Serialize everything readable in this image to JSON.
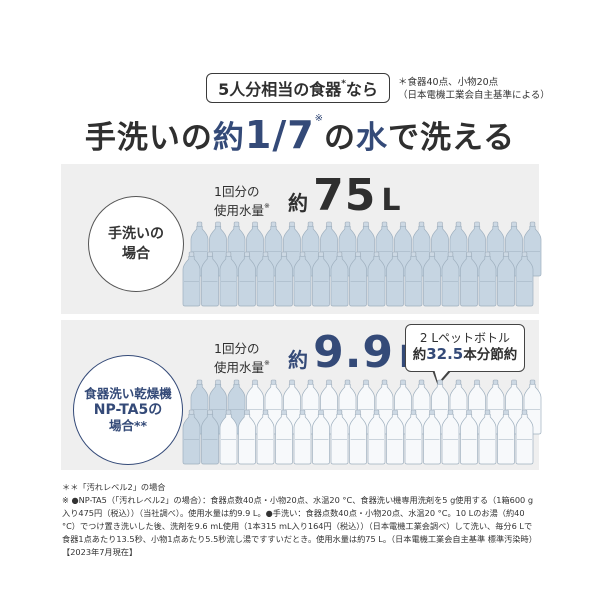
{
  "header": {
    "badge_text": "5人分相当の食器",
    "badge_mark": "*",
    "badge_suffix": "なら",
    "note_line1": "＊食器40点、小物20点",
    "note_line2": "（日本電機工業会自主基準による）"
  },
  "title": {
    "part1": "手洗いの",
    "part2": "約",
    "part3": "1/7",
    "mark": "※",
    "part4": "の",
    "part5": "水",
    "part6": "で洗える"
  },
  "handwash": {
    "circle_line1": "手洗いの",
    "circle_line2": "場合",
    "label_line1": "1回分の",
    "label_line2": "使用水量",
    "label_mark": "※",
    "approx": "約",
    "value": "75",
    "unit": "L",
    "bottles_total": 38
  },
  "dishwasher": {
    "circle_line1": "食器洗い乾燥機",
    "circle_line2": "NP-TA5の",
    "circle_line3": "場合**",
    "label_line1": "1回分の",
    "label_line2": "使用水量",
    "label_mark": "※",
    "approx": "約",
    "value": "9.9",
    "unit": "L",
    "callout_line1": "2 Lペットボトル",
    "callout_pre": "約",
    "callout_value": "32.5",
    "callout_suffix": "本分節約",
    "bottles_total": 38,
    "bottles_saved": 32.5
  },
  "footnotes": {
    "line1": "＊＊「汚れレベル2」の場合",
    "line2": "※ ●NP-TA5（「汚れレベル2」の場合）：食器点数40点・小物20点、水温20 °C、食器洗い機専用洗剤を5 g使用する（1箱600 g入り475円（税込））（当社調べ）。使用水量は約9.9 L。●手洗い：食器点数40点・小物20点、水温20 °C。10 Lのお湯（約40 °C）でつけ置き洗いした後、洗剤を9.6 mL使用（1本315 mL入り164円（税込））（日本電機工業会調べ）して洗い、毎分6 Lで食器1点あたり13.5秒、小物1点あたり5.5秒流し湯ですすいだとき。使用水量は約75 L。（日本電機工業会自主基準 標準汚染時）【2023年7月現在】"
  },
  "colors": {
    "accent": "#344a78",
    "panel_bg": "#efefef",
    "bottle_full": "#c6d5e2",
    "bottle_empty": "#f7f9fb"
  }
}
